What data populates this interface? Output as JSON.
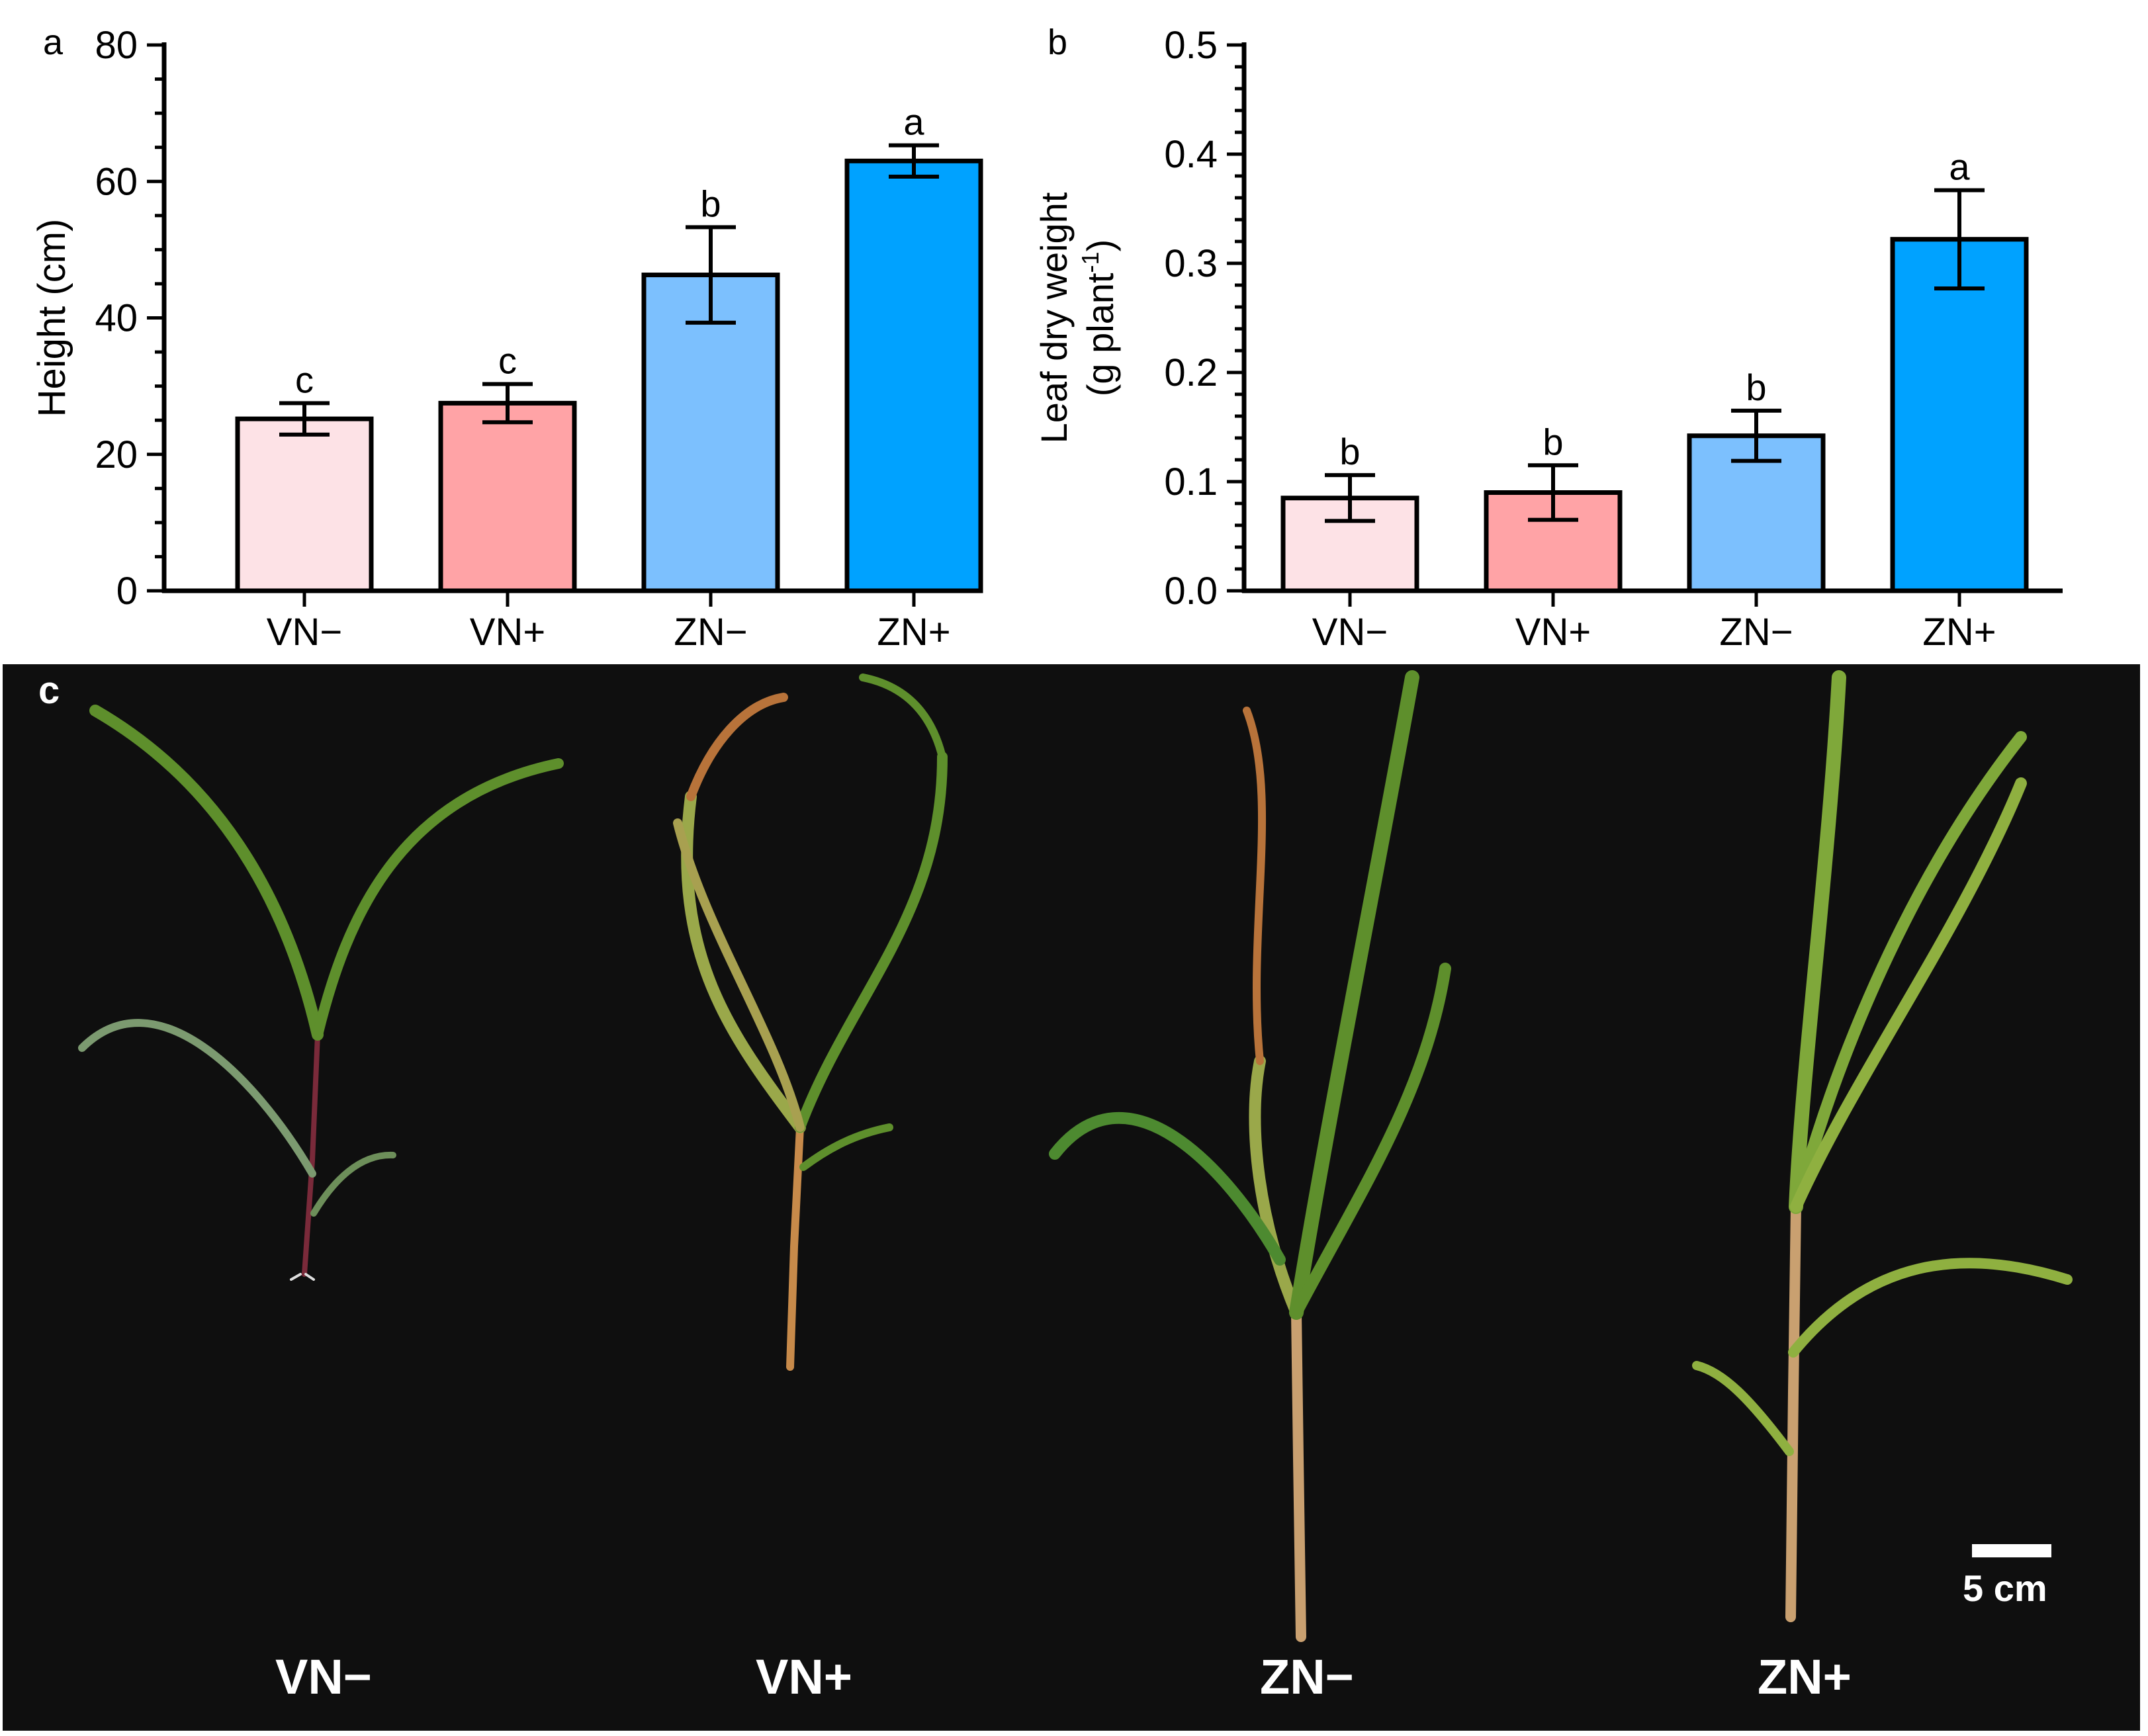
{
  "chart_data": [
    {
      "panel": "a",
      "type": "bar",
      "categories": [
        "VN−",
        "VN+",
        "ZN−",
        "ZN+"
      ],
      "values": [
        25.2,
        27.5,
        46.3,
        63.0
      ],
      "errors": [
        2.3,
        2.8,
        7.0,
        2.3
      ],
      "significance": [
        "c",
        "c",
        "b",
        "a"
      ],
      "colors": [
        "#fde2e6",
        "#ffa3a6",
        "#7cc0fe",
        "#00a2ff"
      ],
      "xlabel": "",
      "ylabel": "Height (cm)",
      "ylim": [
        0,
        80
      ],
      "yticks": [
        0,
        20,
        40,
        60,
        80
      ]
    },
    {
      "panel": "b",
      "type": "bar",
      "categories": [
        "VN−",
        "VN+",
        "ZN−",
        "ZN+"
      ],
      "values": [
        0.085,
        0.09,
        0.142,
        0.322
      ],
      "errors": [
        0.021,
        0.025,
        0.023,
        0.045
      ],
      "significance": [
        "b",
        "b",
        "b",
        "a"
      ],
      "colors": [
        "#fde2e6",
        "#ffa3a6",
        "#7cc0fe",
        "#00a2ff"
      ],
      "xlabel": "",
      "ylabel_line1": "Leaf dry weight",
      "ylabel_line2_prefix": "(g plant",
      "ylabel_superscript": "-1",
      "ylabel_line2_suffix": ")",
      "ylim": [
        0,
        0.5
      ],
      "yticks": [
        "0.0",
        "0.1",
        "0.2",
        "0.3",
        "0.4",
        "0.5"
      ]
    }
  ],
  "photo_panel": {
    "panel": "c",
    "treatments": [
      "VN−",
      "VN+",
      "ZN−",
      "ZN+"
    ],
    "scale_bar_label": "5 cm",
    "leaf_color": "#5e8f2c",
    "senescent_color": "#b8733a",
    "stem_color": "#7a2a3a"
  }
}
